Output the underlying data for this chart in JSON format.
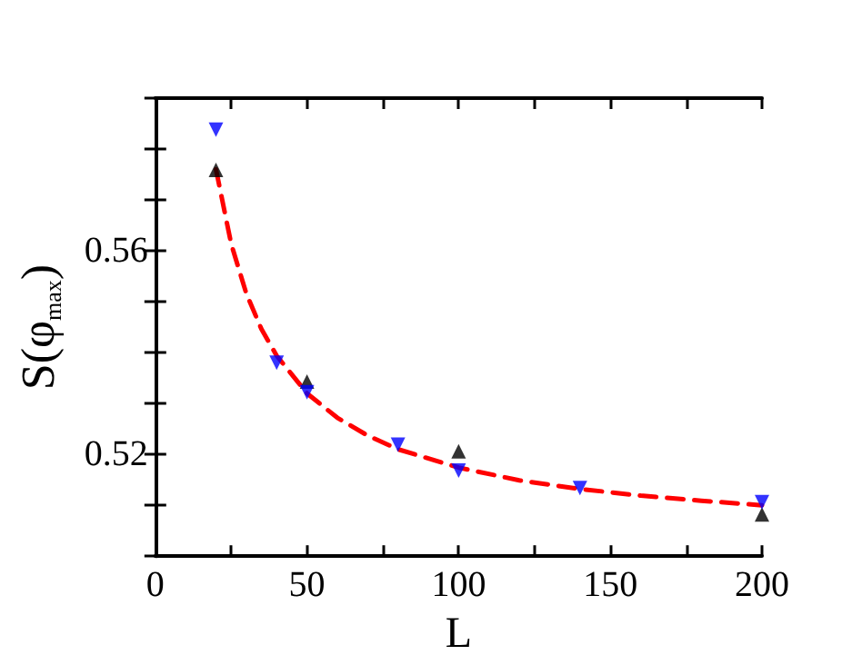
{
  "chart_data": {
    "type": "scatter",
    "xlabel": "L",
    "ylabel": "S(φ$_{max}$)",
    "x": [
      20,
      40,
      50,
      80,
      100,
      140,
      200
    ],
    "series": [
      {
        "color": "#000000",
        "marker": "triangle",
        "values": [
          0.5759,
          null,
          0.5343,
          null,
          0.5206,
          null,
          0.5082
        ]
      },
      {
        "color": "#0000ff",
        "marker": "triangle-down",
        "values": [
          0.5838,
          0.538,
          0.5322,
          0.5219,
          0.5168,
          0.5134,
          0.5106
        ]
      },
      {
        "type": "line",
        "color": "#ff0000",
        "line_style": "dashed",
        "marker": "none",
        "x": [
          20,
          25,
          30,
          35,
          40,
          50,
          60,
          70,
          80,
          100,
          120,
          140,
          160,
          180,
          200
        ],
        "values": [
          0.576,
          0.5614,
          0.5516,
          0.5446,
          0.5394,
          0.532,
          0.5272,
          0.5237,
          0.521,
          0.5174,
          0.5149,
          0.5132,
          0.5119,
          0.5109,
          0.51
        ]
      }
    ],
    "xlim": [
      0,
      200
    ],
    "xticks": [
      0,
      {
        "value": 25,
        "label": null
      },
      50,
      {
        "value": 75,
        "label": null
      },
      100,
      {
        "value": 125,
        "label": null
      },
      150,
      {
        "value": 175,
        "label": null
      },
      200
    ],
    "ylim": [
      0.5,
      0.59
    ],
    "yticks": [
      {
        "value": 0.5,
        "label": null
      },
      {
        "value": 0.51,
        "label": null
      },
      {
        "value": 0.52,
        "label": "0.52"
      },
      {
        "value": 0.53,
        "label": null
      },
      {
        "value": 0.54,
        "label": null
      },
      {
        "value": 0.55,
        "label": null
      },
      {
        "value": 0.56,
        "label": "0.56"
      },
      {
        "value": 0.57,
        "label": null
      },
      {
        "value": 0.58,
        "label": null
      },
      {
        "value": 0.59,
        "label": null
      }
    ]
  }
}
